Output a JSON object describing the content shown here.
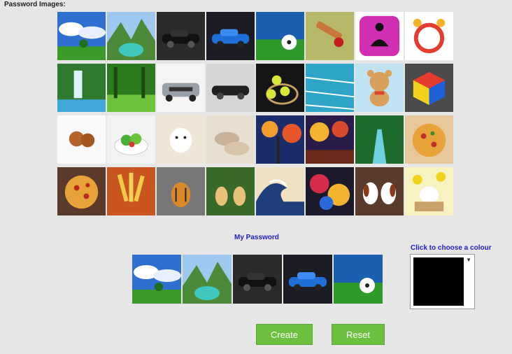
{
  "heading": "Password Images:",
  "images": [
    "blue-sky-tree",
    "mountain-lake",
    "black-car",
    "blue-car",
    "soccer-ball-field",
    "cricket-bat-ball",
    "meditation-icon",
    "alarm-clock",
    "waterfall",
    "green-forest-path",
    "silver-bmw",
    "black-sports-car",
    "tennis-balls-racket",
    "swimming-pool",
    "teddy-bear",
    "colour-cube",
    "cookies",
    "salad-bowl",
    "white-puppy",
    "sleeping-puppies",
    "autumn-painting",
    "rainy-street-painting",
    "forest-river",
    "pizza",
    "pizza-slices",
    "fries",
    "tiger-cub",
    "two-puppies",
    "great-wave",
    "abstract-art",
    "beagle-puppies",
    "puppy-flowers"
  ],
  "password_label": "My Password",
  "password_images": [
    "blue-sky-tree",
    "mountain-lake",
    "black-car",
    "blue-car",
    "soccer-ball-field"
  ],
  "colour_label": "Click to choose a colour",
  "selected_colour": "#000000",
  "buttons": {
    "create": "Create",
    "reset": "Reset"
  },
  "accent_color": "#6cbf3f",
  "label_color": "#2020c8"
}
